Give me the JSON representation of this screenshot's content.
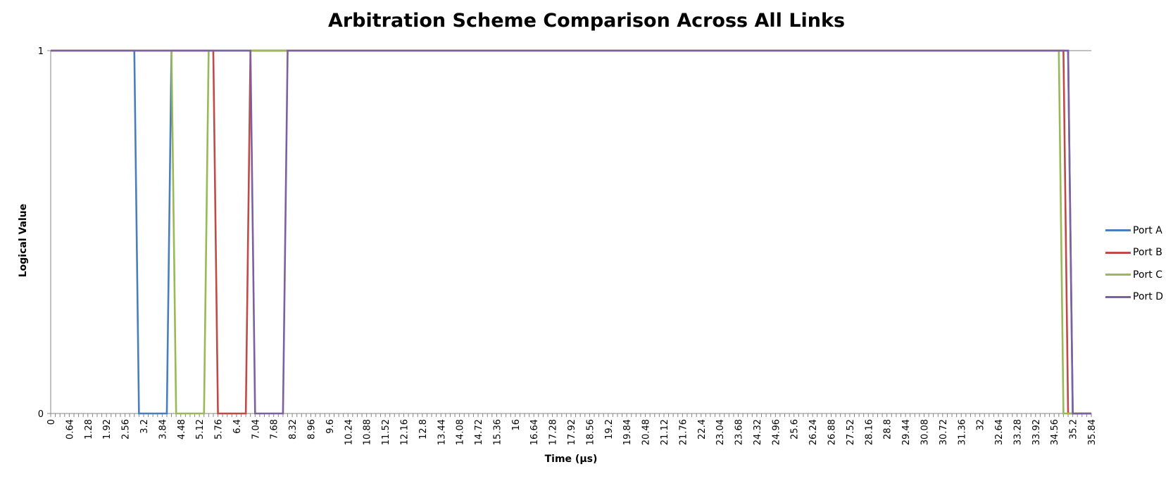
{
  "chart_data": {
    "type": "line",
    "title": "Arbitration Scheme Comparison Across All Links",
    "xlabel": "Time (µs)",
    "ylabel": "Logical Value",
    "x_tick_labels": [
      "0",
      "0.64",
      "1.28",
      "1.92",
      "2.56",
      "3.2",
      "3.84",
      "4.48",
      "5.12",
      "5.76",
      "6.4",
      "7.04",
      "7.68",
      "8.32",
      "8.96",
      "9.6",
      "10.24",
      "10.88",
      "11.52",
      "12.16",
      "12.8",
      "13.44",
      "14.08",
      "14.72",
      "15.36",
      "16",
      "16.64",
      "17.28",
      "17.92",
      "18.56",
      "19.2",
      "19.84",
      "20.48",
      "21.12",
      "21.76",
      "22.4",
      "23.04",
      "23.68",
      "24.32",
      "24.96",
      "25.6",
      "26.24",
      "26.88",
      "27.52",
      "28.16",
      "28.8",
      "29.44",
      "30.08",
      "30.72",
      "31.36",
      "32",
      "32.64",
      "33.28",
      "33.92",
      "34.56",
      "35.2",
      "35.84"
    ],
    "y_tick_labels": [
      "0",
      "1"
    ],
    "xlim": [
      0,
      35.84
    ],
    "ylim": [
      0,
      1
    ],
    "x_step": 0.16,
    "grid": "horizontal major at 1",
    "legend_position": "right",
    "series": [
      {
        "name": "Port A",
        "color": "#4a7ebb",
        "segments": [
          [
            0,
            1
          ],
          [
            2.88,
            1
          ],
          [
            3.04,
            0
          ],
          [
            4.0,
            0
          ],
          [
            4.16,
            1
          ],
          [
            35.04,
            1
          ],
          [
            35.2,
            0
          ],
          [
            35.84,
            0
          ]
        ]
      },
      {
        "name": "Port B",
        "color": "#be4b48",
        "segments": [
          [
            0,
            1
          ],
          [
            5.6,
            1
          ],
          [
            5.76,
            0
          ],
          [
            6.72,
            0
          ],
          [
            6.88,
            1
          ],
          [
            34.88,
            1
          ],
          [
            35.04,
            0
          ],
          [
            35.84,
            0
          ]
        ]
      },
      {
        "name": "Port C",
        "color": "#98b954",
        "segments": [
          [
            0,
            1
          ],
          [
            4.16,
            1
          ],
          [
            4.32,
            0
          ],
          [
            5.28,
            0
          ],
          [
            5.44,
            1
          ],
          [
            34.72,
            1
          ],
          [
            34.88,
            0
          ],
          [
            35.84,
            0
          ]
        ]
      },
      {
        "name": "Port D",
        "color": "#7d60a0",
        "segments": [
          [
            0,
            1
          ],
          [
            6.88,
            1
          ],
          [
            7.04,
            0
          ],
          [
            8.0,
            0
          ],
          [
            8.16,
            1
          ],
          [
            35.04,
            1
          ],
          [
            35.2,
            0
          ],
          [
            35.84,
            0
          ]
        ]
      }
    ]
  }
}
